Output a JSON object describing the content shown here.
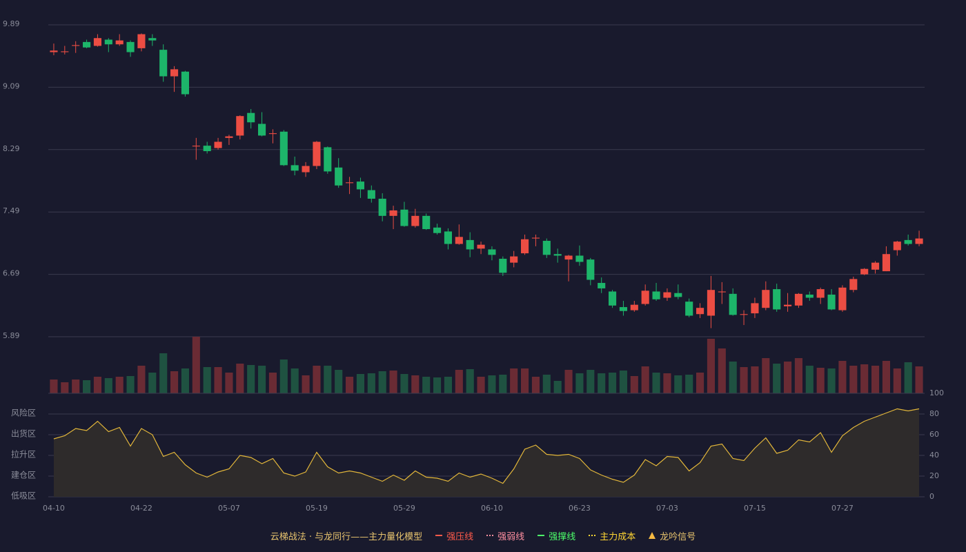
{
  "chart_data": [
    {
      "type": "candlestick",
      "categories": [
        "04-10",
        null,
        null,
        null,
        null,
        null,
        null,
        null,
        "04-22",
        null,
        null,
        null,
        null,
        null,
        null,
        null,
        "05-07",
        null,
        null,
        null,
        null,
        null,
        null,
        null,
        "05-19",
        null,
        null,
        null,
        null,
        null,
        null,
        null,
        "05-29",
        null,
        null,
        null,
        null,
        null,
        null,
        null,
        "06-10",
        null,
        null,
        null,
        null,
        null,
        null,
        null,
        "06-23",
        null,
        null,
        null,
        null,
        null,
        null,
        null,
        "07-03",
        null,
        null,
        null,
        null,
        null,
        null,
        null,
        "07-15",
        null,
        null,
        null,
        null,
        null,
        null,
        null,
        "07-27",
        null,
        null,
        null,
        null,
        null,
        null,
        null
      ],
      "open": [
        9.54,
        9.54,
        9.62,
        9.67,
        9.62,
        9.7,
        9.64,
        9.67,
        9.59,
        9.72,
        9.57,
        9.23,
        9.29,
        8.33,
        8.34,
        8.31,
        8.44,
        8.47,
        8.76,
        8.62,
        8.49,
        8.52,
        8.09,
        8.0,
        8.08,
        8.32,
        8.06,
        7.86,
        7.88,
        7.77,
        7.66,
        7.44,
        7.52,
        7.31,
        7.44,
        7.29,
        7.24,
        7.08,
        7.13,
        7.02,
        7.01,
        6.89,
        6.84,
        6.96,
        7.15,
        7.12,
        6.95,
        6.88,
        6.93,
        6.88,
        6.58,
        6.47,
        6.27,
        6.23,
        6.31,
        6.47,
        6.39,
        6.45,
        6.34,
        6.18,
        6.16,
        6.46,
        6.44,
        6.17,
        6.19,
        6.26,
        6.5,
        6.28,
        6.29,
        6.43,
        6.39,
        6.43,
        6.23,
        6.49,
        6.69,
        6.75,
        6.73,
        7.0,
        7.13,
        7.08
      ],
      "close": [
        9.56,
        9.55,
        9.63,
        9.6,
        9.72,
        9.64,
        9.69,
        9.54,
        9.77,
        9.69,
        9.23,
        9.32,
        9.0,
        8.34,
        8.27,
        8.39,
        8.46,
        8.72,
        8.64,
        8.47,
        8.5,
        8.09,
        8.02,
        8.08,
        8.39,
        8.01,
        7.83,
        7.87,
        7.78,
        7.66,
        7.44,
        7.51,
        7.31,
        7.44,
        7.27,
        7.22,
        7.08,
        7.17,
        7.01,
        7.07,
        6.94,
        6.71,
        6.92,
        7.14,
        7.16,
        6.94,
        6.93,
        6.93,
        6.85,
        6.62,
        6.51,
        6.29,
        6.22,
        6.3,
        6.48,
        6.37,
        6.46,
        6.4,
        6.16,
        6.26,
        6.49,
        6.47,
        6.17,
        6.18,
        6.32,
        6.49,
        6.24,
        6.3,
        6.44,
        6.39,
        6.5,
        6.24,
        6.52,
        6.63,
        6.76,
        6.84,
        6.95,
        7.11,
        7.08,
        7.15
      ],
      "high": [
        9.65,
        9.62,
        9.68,
        9.7,
        9.77,
        9.72,
        9.77,
        9.69,
        9.78,
        9.77,
        9.64,
        9.36,
        9.3,
        8.44,
        8.39,
        8.44,
        8.48,
        8.73,
        8.81,
        8.77,
        8.55,
        8.54,
        8.2,
        8.13,
        8.4,
        8.33,
        8.18,
        7.94,
        7.93,
        7.83,
        7.73,
        7.57,
        7.62,
        7.53,
        7.47,
        7.34,
        7.28,
        7.33,
        7.23,
        7.11,
        7.05,
        6.92,
        6.99,
        7.2,
        7.2,
        7.15,
        7.02,
        6.94,
        7.06,
        6.9,
        6.65,
        6.49,
        6.35,
        6.35,
        6.56,
        6.58,
        6.51,
        6.56,
        6.38,
        6.32,
        6.67,
        6.59,
        6.51,
        6.23,
        6.39,
        6.6,
        6.57,
        6.45,
        6.45,
        6.47,
        6.52,
        6.5,
        6.55,
        6.66,
        6.77,
        6.86,
        7.05,
        7.12,
        7.2,
        7.25
      ],
      "low": [
        9.5,
        9.51,
        9.53,
        9.59,
        9.61,
        9.54,
        9.62,
        9.48,
        9.55,
        9.62,
        9.16,
        9.03,
        8.97,
        8.16,
        8.24,
        8.29,
        8.35,
        8.42,
        8.56,
        8.46,
        8.37,
        8.08,
        7.96,
        7.94,
        8.04,
        7.98,
        7.8,
        7.72,
        7.67,
        7.61,
        7.37,
        7.27,
        7.3,
        7.29,
        7.26,
        7.2,
        7.01,
        7.07,
        6.91,
        6.95,
        6.87,
        6.67,
        6.78,
        6.94,
        7.05,
        6.9,
        6.84,
        6.6,
        6.8,
        6.55,
        6.45,
        6.26,
        6.16,
        6.21,
        6.29,
        6.35,
        6.35,
        6.37,
        6.14,
        6.13,
        6.0,
        6.31,
        6.16,
        6.04,
        6.13,
        6.23,
        6.21,
        6.21,
        6.26,
        6.35,
        6.31,
        6.23,
        6.21,
        6.46,
        6.68,
        6.7,
        6.73,
        6.93,
        7.06,
        7.05
      ],
      "up_color": "#ec4d43",
      "down_color": "#1db56a",
      "ylim": [
        5.89,
        9.89
      ],
      "yticks": [
        5.89,
        6.69,
        7.49,
        8.29,
        9.09,
        9.89
      ],
      "grid": true
    },
    {
      "type": "bar",
      "values": [
        20,
        16,
        20,
        19,
        24,
        22,
        24,
        25,
        40,
        30,
        58,
        32,
        36,
        82,
        38,
        38,
        30,
        43,
        41,
        40,
        30,
        49,
        36,
        26,
        40,
        40,
        34,
        24,
        28,
        29,
        32,
        33,
        28,
        26,
        24,
        23,
        24,
        34,
        35,
        24,
        26,
        27,
        36,
        36,
        24,
        27,
        18,
        34,
        29,
        34,
        29,
        30,
        33,
        25,
        39,
        30,
        29,
        26,
        27,
        30,
        79,
        65,
        46,
        38,
        39,
        51,
        43,
        46,
        51,
        40,
        37,
        36,
        47,
        40,
        42,
        40,
        47,
        36,
        45,
        39
      ],
      "up_color": "#6a2b34",
      "down_color": "#1f5241",
      "ylim": [
        0,
        82
      ]
    },
    {
      "type": "line",
      "values": [
        56,
        59,
        66,
        64,
        73,
        63,
        67,
        49,
        66,
        60,
        39,
        43,
        31,
        23,
        19,
        24,
        27,
        40,
        38,
        32,
        37,
        23,
        20,
        24,
        43,
        29,
        23,
        25,
        23,
        19,
        15,
        21,
        16,
        25,
        19,
        18,
        15,
        23,
        19,
        22,
        18,
        13,
        27,
        46,
        50,
        41,
        40,
        41,
        37,
        26,
        21,
        17,
        14,
        21,
        36,
        30,
        39,
        38,
        25,
        33,
        49,
        51,
        37,
        35,
        47,
        57,
        42,
        45,
        55,
        53,
        62,
        43,
        59,
        67,
        73,
        77,
        81,
        85,
        83,
        85
      ],
      "color": "#e3b73a",
      "area_color": "#2e2b2b",
      "ylim": [
        0,
        100
      ],
      "yticks": [
        0,
        20,
        40,
        60,
        80,
        100
      ],
      "ytick_colors": [
        "#ff4d4d",
        "#f0a040",
        "#4a90ff",
        "#e040e0",
        "#f0a040",
        "#3ddc5a"
      ],
      "zones": [
        {
          "value": 80,
          "label": "风险区",
          "color": "#f0a040"
        },
        {
          "value": 60,
          "label": "出货区",
          "color": "#e040e0"
        },
        {
          "value": 40,
          "label": "拉升区",
          "color": "#4a90ff"
        },
        {
          "value": 20,
          "label": "建仓区",
          "color": "#ff6a5a"
        },
        {
          "value": 0,
          "label": "低吸区",
          "color": "#ff4a4a"
        }
      ],
      "grid": true
    }
  ],
  "legend": {
    "title": "云梯战法 · 与龙同行——主力量化模型",
    "title_color": "#e8c46e",
    "items": [
      {
        "name": "强压线",
        "color": "#ff5a4a",
        "style": "solid"
      },
      {
        "name": "强弱线",
        "color": "#ff8fa0",
        "style": "dashed"
      },
      {
        "name": "强撑线",
        "color": "#4cff6a",
        "style": "solid"
      },
      {
        "name": "主力成本",
        "color": "#ffd633",
        "style": "dashed"
      },
      {
        "name": "龙吟信号",
        "color": "#f5b942",
        "style": "triangle"
      }
    ]
  }
}
